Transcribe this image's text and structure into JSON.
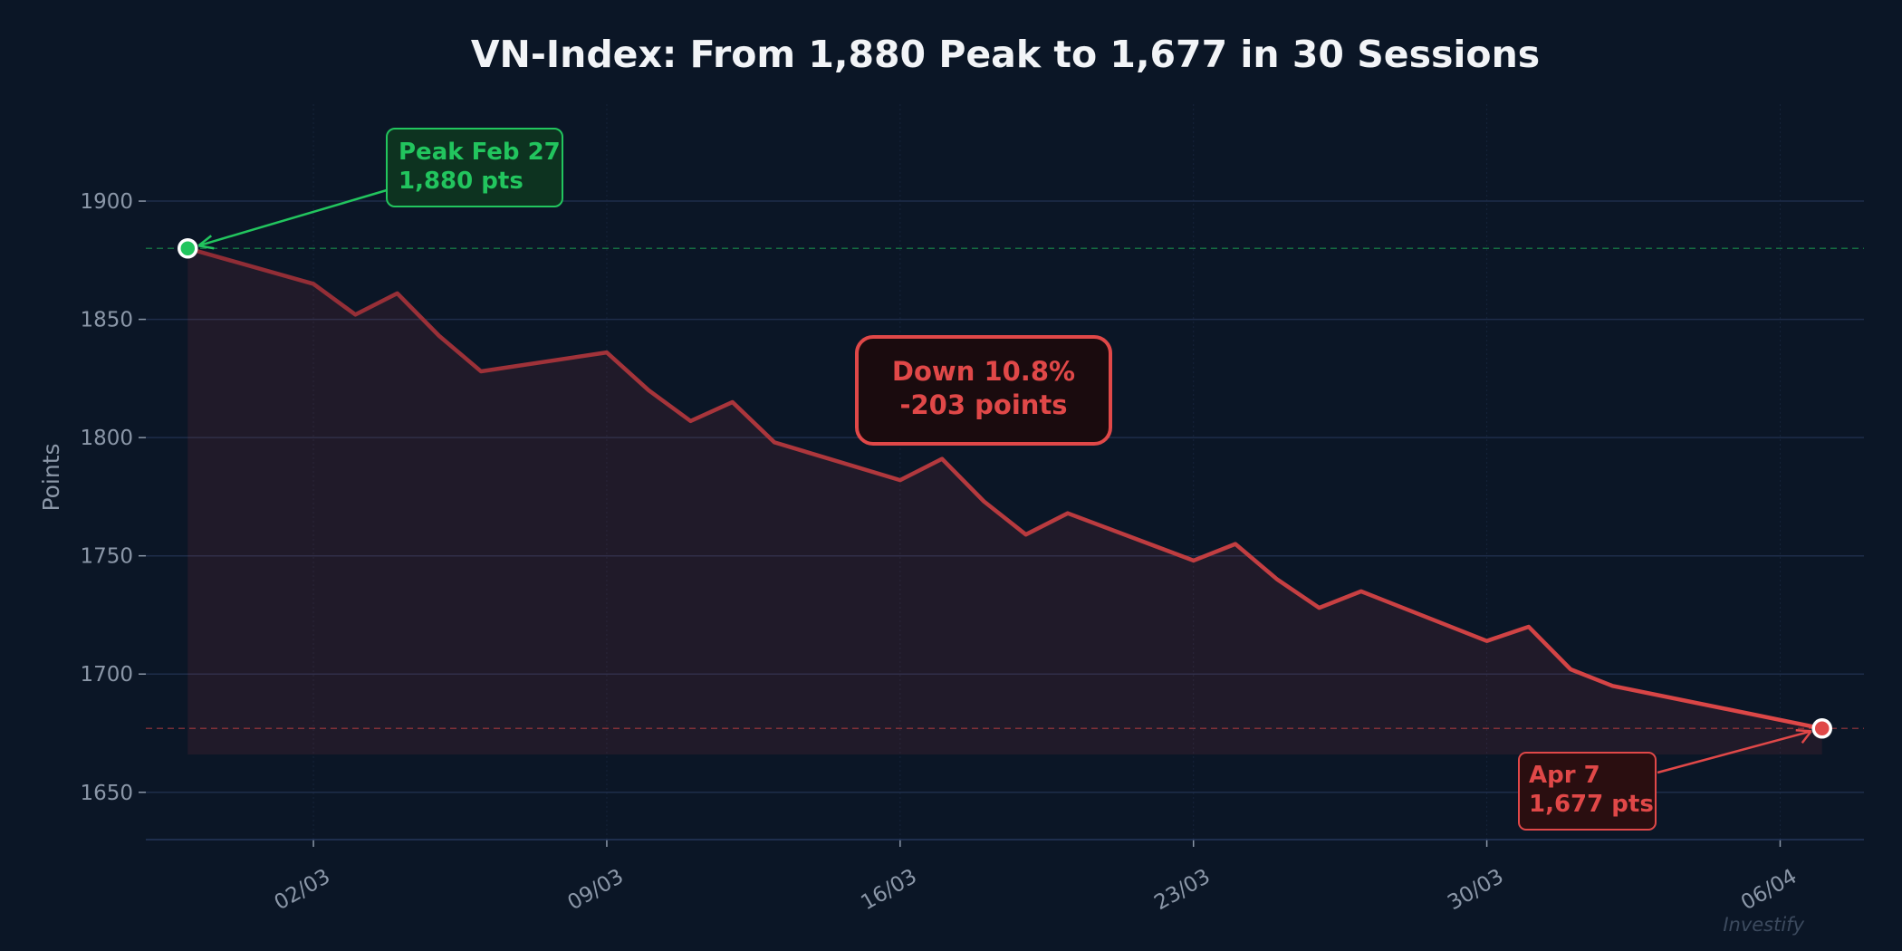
{
  "chart_data": {
    "type": "area",
    "title": "VN-Index: From 1,880 Peak to 1,677 in 30 Sessions",
    "xlabel": "",
    "ylabel": "Points",
    "xlim": [
      "2025-02-26",
      "2025-04-08"
    ],
    "ylim": [
      1630,
      1941
    ],
    "grid": true,
    "y_ticks": [
      1650,
      1700,
      1750,
      1800,
      1850,
      1900
    ],
    "x_ticks": [
      {
        "date": "2025-03-02",
        "label": "02/03"
      },
      {
        "date": "2025-03-09",
        "label": "09/03"
      },
      {
        "date": "2025-03-16",
        "label": "16/03"
      },
      {
        "date": "2025-03-23",
        "label": "23/03"
      },
      {
        "date": "2025-03-30",
        "label": "30/03"
      },
      {
        "date": "2025-04-06",
        "label": "06/04"
      }
    ],
    "series": [
      {
        "x": [
          "2025-02-27",
          "2025-03-02",
          "2025-03-03",
          "2025-03-04",
          "2025-03-05",
          "2025-03-06",
          "2025-03-09",
          "2025-03-10",
          "2025-03-11",
          "2025-03-12",
          "2025-03-13",
          "2025-03-16",
          "2025-03-17",
          "2025-03-18",
          "2025-03-19",
          "2025-03-20",
          "2025-03-23",
          "2025-03-24",
          "2025-03-25",
          "2025-03-26",
          "2025-03-27",
          "2025-03-30",
          "2025-03-31",
          "2025-04-01",
          "2025-04-02",
          "2025-04-07"
        ],
        "values": [
          1880,
          1865,
          1852,
          1861,
          1843,
          1828,
          1836,
          1820,
          1807,
          1815,
          1798,
          1782,
          1791,
          1773,
          1759,
          1768,
          1748,
          1755,
          1740,
          1728,
          1735,
          1714,
          1720,
          1702,
          1695,
          1677
        ],
        "fill_baseline": 1666
      }
    ],
    "reference_lines": [
      {
        "value": 1880,
        "color": "#22c55e"
      },
      {
        "value": 1677,
        "color": "#e04848"
      }
    ],
    "annotations": {
      "peak": {
        "line1": "Peak Feb 27",
        "line2": "1,880 pts",
        "date": "2025-02-27",
        "value": 1880
      },
      "change": {
        "line1": "Down 10.8%",
        "line2": "-203 points"
      },
      "end": {
        "line1": "Apr 7",
        "line2": "1,677 pts",
        "date": "2025-04-07",
        "value": 1677
      }
    },
    "colors": {
      "line": "#e04848",
      "peak": "#22c55e",
      "background": "#0b1626",
      "grid": "#1e2d4a"
    },
    "watermark": "Investify"
  }
}
